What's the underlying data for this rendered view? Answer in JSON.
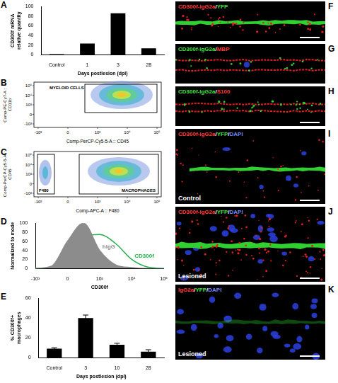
{
  "chart_data": [
    {
      "panel": "A",
      "type": "bar",
      "categories": [
        "Control",
        "1",
        "3",
        "28"
      ],
      "values": [
        1,
        23,
        86,
        13
      ],
      "color": "#000000",
      "x_label": "Days postlesion (dpl)",
      "y_label": "CD300f mRNA relative quantity",
      "ylim": [
        0,
        100
      ],
      "yticks": [
        0,
        20,
        40,
        60,
        80,
        100
      ],
      "grid": false
    },
    {
      "panel": "D",
      "type": "line",
      "categories": [
        "-10³",
        null,
        "0",
        null,
        "10³",
        null,
        "10⁴",
        null,
        "10⁵"
      ],
      "series": [
        {
          "name": "hIgG",
          "color": "#8c8c8c",
          "values": [
            0,
            5,
            60,
            100,
            40,
            8,
            2,
            0,
            0
          ]
        },
        {
          "name": "CD300f",
          "color": "#22b14c",
          "values": [
            0,
            3,
            30,
            70,
            75,
            55,
            20,
            3,
            0
          ]
        }
      ],
      "x_label": "CD300f",
      "y_label": "Normalized to mode",
      "ylim": [
        0,
        100
      ],
      "yticks": [
        0,
        20,
        40,
        60,
        80,
        100
      ],
      "grid": false
    },
    {
      "panel": "E",
      "type": "bar",
      "categories": [
        "Control",
        "3",
        "10",
        "28"
      ],
      "values": [
        9,
        40,
        13,
        6
      ],
      "errors": [
        1,
        3,
        1.5,
        2
      ],
      "color": "#000000",
      "x_label": "Days postlesion (dpl)",
      "y_label": "% CD300f+ macrophages",
      "ylim": [
        0,
        60
      ],
      "yticks": [
        0,
        20,
        40,
        60
      ],
      "grid": false
    }
  ],
  "flow_panels": [
    {
      "panel": "B",
      "x_label": "Comp-PerCP-Cy5-5-A :: CD45",
      "y_label": "Comp-PE-Cy7-A :: CD11b",
      "xticks": [
        "-10³",
        "0",
        "10³",
        "10⁴",
        "10⁵"
      ],
      "yticks": [
        "-10³",
        "0",
        "10³",
        "10⁴",
        "10⁵"
      ],
      "gates": [
        "MYELOID CELLS"
      ]
    },
    {
      "panel": "C",
      "x_label": "Comp-APC-A :: F480",
      "y_label": "Comp-PerCP-Cy5-5-A :: CD45",
      "xticks": [
        "-10³",
        "0",
        "10³",
        "10⁴",
        "10⁵"
      ],
      "yticks": [
        "-10³",
        "0",
        "10³",
        "10⁴",
        "10⁵"
      ],
      "gates": [
        "F480",
        "MACROPHAGES"
      ]
    }
  ],
  "image_panels": [
    {
      "panel": "F",
      "label": [
        {
          "text": "CD300f-IgG2a",
          "color": "#ff3b3b"
        },
        {
          "text": "/",
          "color": "#ffffff"
        },
        {
          "text": "YFP",
          "color": "#3fe03f"
        }
      ]
    },
    {
      "panel": "G",
      "label": [
        {
          "text": "CD300f-IgG2a",
          "color": "#3fe03f"
        },
        {
          "text": "/",
          "color": "#ffffff"
        },
        {
          "text": "MBP",
          "color": "#ff3b3b"
        }
      ]
    },
    {
      "panel": "H",
      "label": [
        {
          "text": "CD300f-IgG2a",
          "color": "#3fe03f"
        },
        {
          "text": "/",
          "color": "#ffffff"
        },
        {
          "text": "S100",
          "color": "#ff3b3b"
        }
      ]
    },
    {
      "panel": "I",
      "label": [
        {
          "text": "CD300f-IgG2a",
          "color": "#ff3b3b"
        },
        {
          "text": "/",
          "color": "#ffffff"
        },
        {
          "text": "YFP",
          "color": "#3fe03f"
        },
        {
          "text": "/",
          "color": "#ffffff"
        },
        {
          "text": "DAPI",
          "color": "#6f86ff"
        }
      ],
      "condition": "Control"
    },
    {
      "panel": "J",
      "label": [
        {
          "text": "CD300f-IgG2a",
          "color": "#ff3b3b"
        },
        {
          "text": "/",
          "color": "#ffffff"
        },
        {
          "text": "YFP",
          "color": "#3fe03f"
        },
        {
          "text": "/",
          "color": "#ffffff"
        },
        {
          "text": "DAPI",
          "color": "#6f86ff"
        }
      ],
      "condition": "Lesioned"
    },
    {
      "panel": "K",
      "label": [
        {
          "text": "IgG2a",
          "color": "#ff3b3b"
        },
        {
          "text": "/",
          "color": "#ffffff"
        },
        {
          "text": "YFP",
          "color": "#3fe03f"
        },
        {
          "text": "/",
          "color": "#ffffff"
        },
        {
          "text": "DAPI",
          "color": "#6f86ff"
        }
      ],
      "condition": "Lesioned"
    }
  ]
}
